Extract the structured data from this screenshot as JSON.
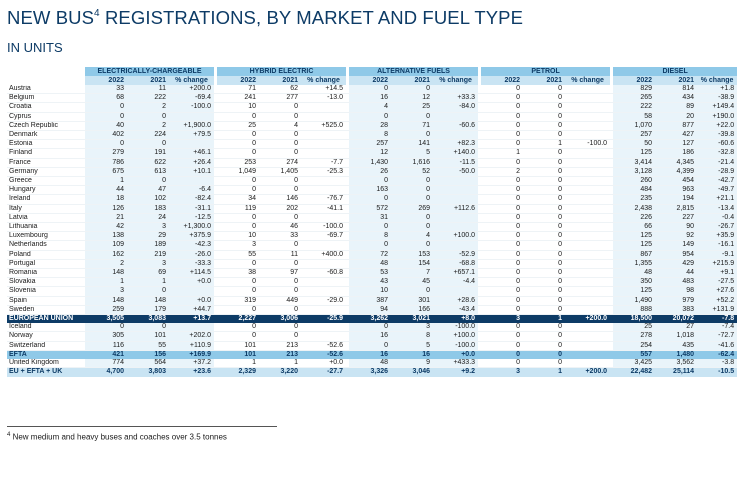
{
  "title": "NEW BUS",
  "title_sup": "4",
  "title_rest": " REGISTRATIONS, BY MARKET AND FUEL TYPE",
  "subtitle": "IN UNITS",
  "groups": [
    "ELECTRICALLY-CHARGEABLE",
    "HYBRID ELECTRIC",
    "ALTERNATIVE FUELS",
    "PETROL",
    "DIESEL"
  ],
  "subheaders": [
    "2022",
    "2021",
    "% change"
  ],
  "rows": [
    [
      "Austria",
      "33",
      "11",
      "+200.0",
      "71",
      "62",
      "+14.5",
      "0",
      "0",
      "",
      "0",
      "0",
      "",
      "829",
      "814",
      "+1.8"
    ],
    [
      "Belgium",
      "68",
      "222",
      "-69.4",
      "241",
      "277",
      "-13.0",
      "16",
      "12",
      "+33.3",
      "0",
      "0",
      "",
      "265",
      "434",
      "-38.9"
    ],
    [
      "Croatia",
      "0",
      "2",
      "-100.0",
      "10",
      "0",
      "",
      "4",
      "25",
      "-84.0",
      "0",
      "0",
      "",
      "222",
      "89",
      "+149.4"
    ],
    [
      "Cyprus",
      "0",
      "0",
      "",
      "0",
      "0",
      "",
      "0",
      "0",
      "",
      "0",
      "0",
      "",
      "58",
      "20",
      "+190.0"
    ],
    [
      "Czech Republic",
      "40",
      "2",
      "+1,900.0",
      "25",
      "4",
      "+525.0",
      "28",
      "71",
      "-60.6",
      "0",
      "0",
      "",
      "1,070",
      "877",
      "+22.0"
    ],
    [
      "Denmark",
      "402",
      "224",
      "+79.5",
      "0",
      "0",
      "",
      "8",
      "0",
      "",
      "0",
      "0",
      "",
      "257",
      "427",
      "-39.8"
    ],
    [
      "Estonia",
      "0",
      "0",
      "",
      "0",
      "0",
      "",
      "257",
      "141",
      "+82.3",
      "0",
      "1",
      "-100.0",
      "50",
      "127",
      "-60.6"
    ],
    [
      "Finland",
      "279",
      "191",
      "+46.1",
      "0",
      "0",
      "",
      "12",
      "5",
      "+140.0",
      "1",
      "0",
      "",
      "125",
      "186",
      "-32.8"
    ],
    [
      "France",
      "786",
      "622",
      "+26.4",
      "253",
      "274",
      "-7.7",
      "1,430",
      "1,616",
      "-11.5",
      "0",
      "0",
      "",
      "3,414",
      "4,345",
      "-21.4"
    ],
    [
      "Germany",
      "675",
      "613",
      "+10.1",
      "1,049",
      "1,405",
      "-25.3",
      "26",
      "52",
      "-50.0",
      "2",
      "0",
      "",
      "3,128",
      "4,399",
      "-28.9"
    ],
    [
      "Greece",
      "1",
      "0",
      "",
      "0",
      "0",
      "",
      "0",
      "0",
      "",
      "0",
      "0",
      "",
      "260",
      "454",
      "-42.7"
    ],
    [
      "Hungary",
      "44",
      "47",
      "-6.4",
      "0",
      "0",
      "",
      "163",
      "0",
      "",
      "0",
      "0",
      "",
      "484",
      "963",
      "-49.7"
    ],
    [
      "Ireland",
      "18",
      "102",
      "-82.4",
      "34",
      "146",
      "-76.7",
      "0",
      "0",
      "",
      "0",
      "0",
      "",
      "235",
      "194",
      "+21.1"
    ],
    [
      "Italy",
      "126",
      "183",
      "-31.1",
      "119",
      "202",
      "-41.1",
      "572",
      "269",
      "+112.6",
      "0",
      "0",
      "",
      "2,438",
      "2,815",
      "-13.4"
    ],
    [
      "Latvia",
      "21",
      "24",
      "-12.5",
      "0",
      "0",
      "",
      "31",
      "0",
      "",
      "0",
      "0",
      "",
      "226",
      "227",
      "-0.4"
    ],
    [
      "Lithuania",
      "42",
      "3",
      "+1,300.0",
      "0",
      "46",
      "-100.0",
      "0",
      "0",
      "",
      "0",
      "0",
      "",
      "66",
      "90",
      "-26.7"
    ],
    [
      "Luxembourg",
      "138",
      "29",
      "+375.9",
      "10",
      "33",
      "-69.7",
      "8",
      "4",
      "+100.0",
      "0",
      "0",
      "",
      "125",
      "92",
      "+35.9"
    ],
    [
      "Netherlands",
      "109",
      "189",
      "-42.3",
      "3",
      "0",
      "",
      "0",
      "0",
      "",
      "0",
      "0",
      "",
      "125",
      "149",
      "-16.1"
    ],
    [
      "Poland",
      "162",
      "219",
      "-26.0",
      "55",
      "11",
      "+400.0",
      "72",
      "153",
      "-52.9",
      "0",
      "0",
      "",
      "867",
      "954",
      "-9.1"
    ],
    [
      "Portugal",
      "2",
      "3",
      "-33.3",
      "0",
      "0",
      "",
      "48",
      "154",
      "-68.8",
      "0",
      "0",
      "",
      "1,355",
      "429",
      "+215.9"
    ],
    [
      "Romania",
      "148",
      "69",
      "+114.5",
      "38",
      "97",
      "-60.8",
      "53",
      "7",
      "+657.1",
      "0",
      "0",
      "",
      "48",
      "44",
      "+9.1"
    ],
    [
      "Slovakia",
      "1",
      "1",
      "+0.0",
      "0",
      "0",
      "",
      "43",
      "45",
      "-4.4",
      "0",
      "0",
      "",
      "350",
      "483",
      "-27.5"
    ],
    [
      "Slovenia",
      "3",
      "0",
      "",
      "0",
      "0",
      "",
      "10",
      "0",
      "",
      "0",
      "0",
      "",
      "125",
      "98",
      "+27.6"
    ],
    [
      "Spain",
      "148",
      "148",
      "+0.0",
      "319",
      "449",
      "-29.0",
      "387",
      "301",
      "+28.6",
      "0",
      "0",
      "",
      "1,490",
      "979",
      "+52.2"
    ],
    [
      "Sweden",
      "259",
      "179",
      "+44.7",
      "0",
      "0",
      "",
      "94",
      "166",
      "-43.4",
      "0",
      "0",
      "",
      "888",
      "383",
      "+131.9"
    ]
  ],
  "eu": [
    "EUROPEAN UNION",
    "3,505",
    "3,083",
    "+13.7",
    "2,227",
    "3,006",
    "-25.9",
    "3,262",
    "3,021",
    "+8.0",
    "3",
    "1",
    "+200.0",
    "18,500",
    "20,072",
    "-7.8"
  ],
  "efta_rows": [
    [
      "Iceland",
      "0",
      "0",
      "",
      "0",
      "0",
      "",
      "0",
      "3",
      "-100.0",
      "0",
      "0",
      "",
      "25",
      "27",
      "-7.4"
    ],
    [
      "Norway",
      "305",
      "101",
      "+202.0",
      "0",
      "0",
      "",
      "16",
      "8",
      "+100.0",
      "0",
      "0",
      "",
      "278",
      "1,018",
      "-72.7"
    ],
    [
      "Switzerland",
      "116",
      "55",
      "+110.9",
      "101",
      "213",
      "-52.6",
      "0",
      "5",
      "-100.0",
      "0",
      "0",
      "",
      "254",
      "435",
      "-41.6"
    ]
  ],
  "efta": [
    "EFTA",
    "421",
    "156",
    "+169.9",
    "101",
    "213",
    "-52.6",
    "16",
    "16",
    "+0.0",
    "0",
    "0",
    "",
    "557",
    "1,480",
    "-62.4"
  ],
  "uk": [
    "United Kingdom",
    "774",
    "564",
    "+37.2",
    "1",
    "1",
    "+0.0",
    "48",
    "9",
    "+433.3",
    "0",
    "0",
    "",
    "3,425",
    "3,562",
    "-3.8"
  ],
  "total": [
    "EU + EFTA + UK",
    "4,700",
    "3,803",
    "+23.6",
    "2,329",
    "3,220",
    "-27.7",
    "3,326",
    "3,046",
    "+9.2",
    "3",
    "1",
    "+200.0",
    "22,482",
    "25,114",
    "-10.5"
  ],
  "footnote_num": "4",
  "footnote": " New medium and heavy buses and coaches over 3.5 tonnes"
}
